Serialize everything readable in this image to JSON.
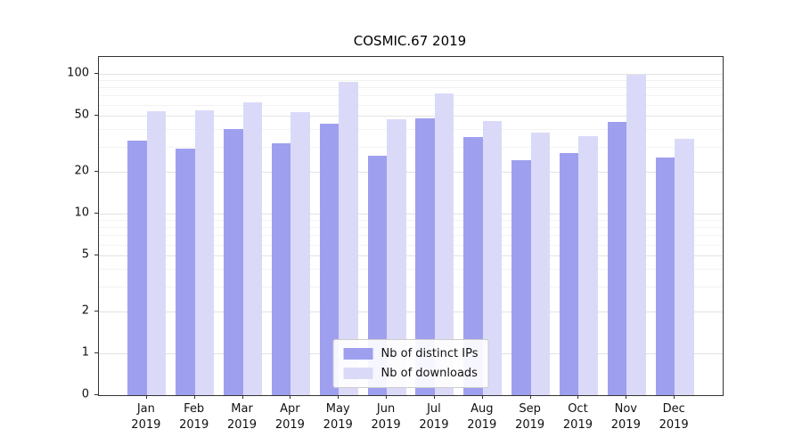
{
  "chart_data": {
    "type": "bar",
    "title": "COSMIC.67 2019",
    "categories": [
      "Jan",
      "Feb",
      "Mar",
      "Apr",
      "May",
      "Jun",
      "Jul",
      "Aug",
      "Sep",
      "Oct",
      "Nov",
      "Dec"
    ],
    "year_label": "2019",
    "series": [
      {
        "name": "Nb of distinct IPs",
        "color": "#9f9fef",
        "values": [
          33,
          29,
          40,
          32,
          44,
          26,
          48,
          35,
          24,
          27,
          45,
          25
        ]
      },
      {
        "name": "Nb of downloads",
        "color": "#dadaf8",
        "values": [
          54,
          55,
          62,
          53,
          88,
          47,
          72,
          46,
          38,
          36,
          98,
          34
        ]
      }
    ],
    "yscale": "symlog",
    "yticks": [
      0,
      1,
      2,
      5,
      10,
      20,
      50,
      100
    ],
    "minor_gridlines": [
      3,
      4,
      6,
      7,
      8,
      9,
      30,
      40,
      60,
      70,
      80,
      90
    ],
    "ylim": [
      0,
      115
    ],
    "grid": true,
    "legend_position": "lower center",
    "xlabel": "",
    "ylabel": ""
  }
}
